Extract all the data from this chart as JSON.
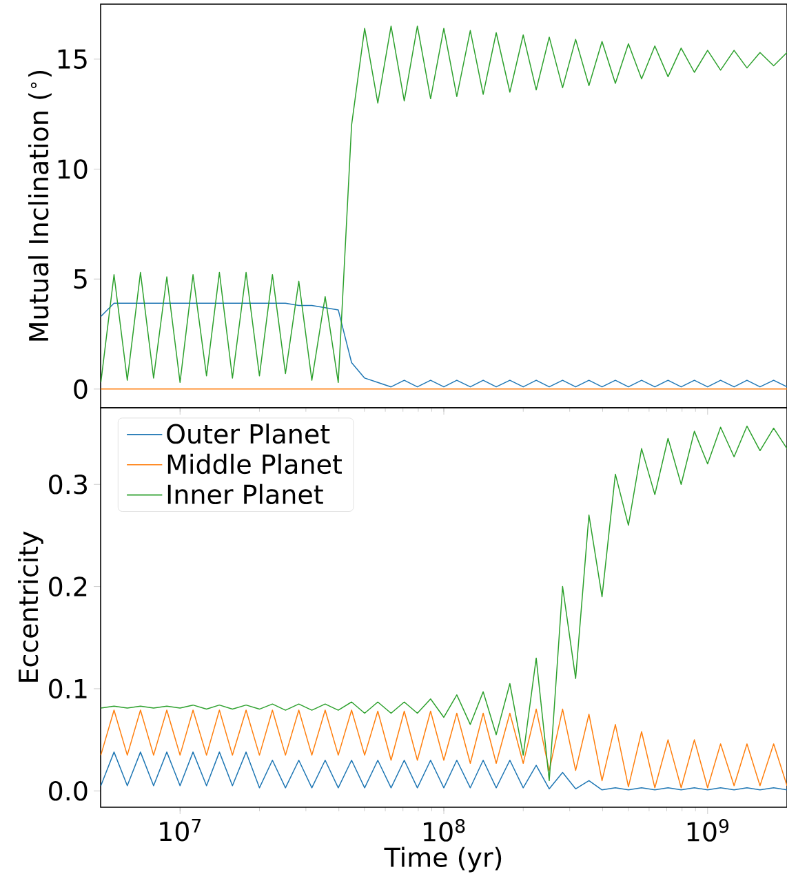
{
  "chart_data": [
    {
      "type": "line",
      "ylabel": "Mutual Inclination ($^{∘}$)",
      "log": "x",
      "xlim": [
        5000000.0,
        2000000000.0
      ],
      "ylim": [
        -0.85,
        17.5
      ],
      "xticks": [
        {
          "value": 10000000.0,
          "label": null
        },
        {
          "value": 100000000.0,
          "label": null
        },
        {
          "value": 1000000000.0,
          "label": null
        }
      ],
      "yticks": [
        0,
        5,
        10,
        15
      ],
      "tick_labels": "y",
      "marker": "none",
      "line_style": "solid",
      "x": [
        5010000.0,
        5620000.0,
        6310000.0,
        7080000.0,
        7940000.0,
        8910000.0,
        10000000.0,
        11200000.0,
        12600000.0,
        14100000.0,
        15800000.0,
        17800000.0,
        20000000.0,
        22400000.0,
        25100000.0,
        28200000.0,
        31600000.0,
        35500000.0,
        39800000.0,
        44700000.0,
        50100000.0,
        56200000.0,
        63100000.0,
        70800000.0,
        79400000.0,
        89100000.0,
        100000000.0,
        112000000.0,
        126000000.0,
        141000000.0,
        158000000.0,
        178000000.0,
        200000000.0,
        224000000.0,
        251000000.0,
        282000000.0,
        316000000.0,
        355000000.0,
        398000000.0,
        447000000.0,
        501000000.0,
        562000000.0,
        631000000.0,
        708000000.0,
        794000000.0,
        891000000.0,
        1000000000.0,
        1120000000.0,
        1260000000.0,
        1410000000.0,
        1580000000.0,
        1780000000.0,
        2000000000.0
      ],
      "series": [
        {
          "color": "#1f77b4",
          "values": [
            3.3,
            3.9,
            3.9,
            3.9,
            3.9,
            3.9,
            3.9,
            3.9,
            3.9,
            3.9,
            3.9,
            3.9,
            3.9,
            3.9,
            3.9,
            3.8,
            3.8,
            3.7,
            3.6,
            1.2,
            0.5,
            0.3,
            0.1,
            0.4,
            0.1,
            0.4,
            0.1,
            0.4,
            0.1,
            0.4,
            0.1,
            0.4,
            0.1,
            0.4,
            0.1,
            0.4,
            0.1,
            0.4,
            0.1,
            0.4,
            0.1,
            0.4,
            0.1,
            0.4,
            0.1,
            0.4,
            0.1,
            0.4,
            0.1,
            0.4,
            0.1,
            0.4,
            0.1
          ]
        },
        {
          "color": "#ff7f0e",
          "values": [
            0,
            0,
            0,
            0,
            0,
            0,
            0,
            0,
            0,
            0,
            0,
            0,
            0,
            0,
            0,
            0,
            0,
            0,
            0,
            0,
            0,
            0,
            0,
            0,
            0,
            0,
            0,
            0,
            0,
            0,
            0,
            0,
            0,
            0,
            0,
            0,
            0,
            0,
            0,
            0,
            0,
            0,
            0,
            0,
            0,
            0,
            0,
            0,
            0,
            0,
            0,
            0,
            0
          ]
        },
        {
          "color": "#2ca02c",
          "values": [
            0.3,
            5.2,
            0.4,
            5.3,
            0.5,
            5.1,
            0.3,
            5.2,
            0.6,
            5.3,
            0.5,
            5.3,
            0.6,
            5.2,
            0.7,
            4.9,
            0.4,
            4.2,
            0.3,
            12.0,
            16.4,
            13.0,
            16.5,
            13.1,
            16.5,
            13.2,
            16.4,
            13.3,
            16.3,
            13.4,
            16.2,
            13.5,
            16.1,
            13.6,
            16.0,
            13.7,
            15.9,
            13.8,
            15.8,
            13.9,
            15.7,
            14.1,
            15.6,
            14.2,
            15.5,
            14.4,
            15.4,
            14.5,
            15.4,
            14.6,
            15.3,
            14.7,
            15.3
          ]
        }
      ]
    },
    {
      "type": "line",
      "xlabel": "Time (yr)",
      "ylabel": "Eccentricity",
      "log": "x",
      "xlim": [
        5000000.0,
        2000000000.0
      ],
      "ylim": [
        -0.016,
        0.375
      ],
      "xticks": [
        {
          "value": 10000000.0,
          "label": "10$^{7}$"
        },
        {
          "value": 100000000.0,
          "label": "10$^{8}$"
        },
        {
          "value": 1000000000.0,
          "label": "10$^{9}$"
        }
      ],
      "yticks": [
        {
          "value": 0,
          "label": "0.0"
        },
        0.1,
        0.2,
        0.3
      ],
      "legend": "top left",
      "marker": "none",
      "line_style": "solid",
      "x": [
        5010000.0,
        5620000.0,
        6310000.0,
        7080000.0,
        7940000.0,
        8910000.0,
        10000000.0,
        11200000.0,
        12600000.0,
        14100000.0,
        15800000.0,
        17800000.0,
        20000000.0,
        22400000.0,
        25100000.0,
        28200000.0,
        31600000.0,
        35500000.0,
        39800000.0,
        44700000.0,
        50100000.0,
        56200000.0,
        63100000.0,
        70800000.0,
        79400000.0,
        89100000.0,
        100000000.0,
        112000000.0,
        126000000.0,
        141000000.0,
        158000000.0,
        178000000.0,
        200000000.0,
        224000000.0,
        251000000.0,
        282000000.0,
        316000000.0,
        355000000.0,
        398000000.0,
        447000000.0,
        501000000.0,
        562000000.0,
        631000000.0,
        708000000.0,
        794000000.0,
        891000000.0,
        1000000000.0,
        1120000000.0,
        1260000000.0,
        1410000000.0,
        1580000000.0,
        1780000000.0,
        2000000000.0
      ],
      "series": [
        {
          "name": "Outer Planet",
          "color": "#1f77b4",
          "values": [
            0.005,
            0.038,
            0.005,
            0.038,
            0.005,
            0.038,
            0.005,
            0.038,
            0.005,
            0.038,
            0.005,
            0.038,
            0.003,
            0.03,
            0.003,
            0.03,
            0.003,
            0.03,
            0.003,
            0.03,
            0.003,
            0.03,
            0.003,
            0.03,
            0.003,
            0.03,
            0.003,
            0.03,
            0.003,
            0.03,
            0.003,
            0.03,
            0.003,
            0.025,
            0.002,
            0.018,
            0.002,
            0.01,
            0.001,
            0.003,
            0.001,
            0.003,
            0.001,
            0.003,
            0.001,
            0.003,
            0.001,
            0.003,
            0.001,
            0.003,
            0.001,
            0.003,
            0.001
          ]
        },
        {
          "name": "Middle Planet",
          "color": "#ff7f0e",
          "values": [
            0.035,
            0.079,
            0.035,
            0.079,
            0.035,
            0.079,
            0.035,
            0.079,
            0.035,
            0.079,
            0.035,
            0.079,
            0.035,
            0.079,
            0.035,
            0.079,
            0.035,
            0.079,
            0.035,
            0.079,
            0.035,
            0.078,
            0.03,
            0.078,
            0.03,
            0.078,
            0.03,
            0.076,
            0.027,
            0.076,
            0.027,
            0.076,
            0.027,
            0.08,
            0.02,
            0.08,
            0.02,
            0.075,
            0.01,
            0.065,
            0.004,
            0.058,
            0.003,
            0.05,
            0.003,
            0.05,
            0.003,
            0.046,
            0.005,
            0.046,
            0.005,
            0.046,
            0.005
          ]
        },
        {
          "name": "Inner Planet",
          "color": "#2ca02c",
          "values": [
            0.081,
            0.083,
            0.081,
            0.083,
            0.081,
            0.083,
            0.081,
            0.084,
            0.08,
            0.084,
            0.08,
            0.084,
            0.08,
            0.085,
            0.079,
            0.085,
            0.079,
            0.085,
            0.079,
            0.087,
            0.076,
            0.087,
            0.076,
            0.087,
            0.076,
            0.09,
            0.072,
            0.094,
            0.065,
            0.097,
            0.055,
            0.105,
            0.035,
            0.13,
            0.01,
            0.2,
            0.11,
            0.27,
            0.19,
            0.31,
            0.26,
            0.335,
            0.29,
            0.345,
            0.3,
            0.352,
            0.32,
            0.356,
            0.327,
            0.357,
            0.333,
            0.355,
            0.335
          ]
        }
      ]
    }
  ]
}
